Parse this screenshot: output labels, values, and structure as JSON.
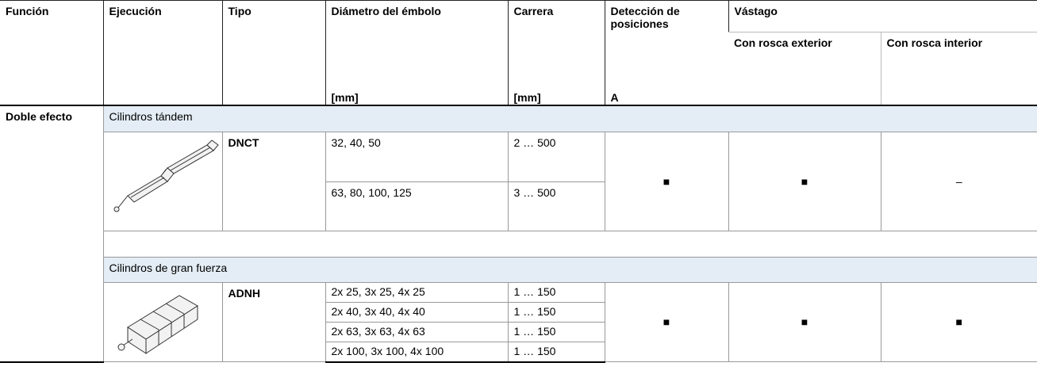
{
  "header": {
    "columns": [
      "Función",
      "Ejecución",
      "Tipo",
      "Diámetro del émbolo",
      "Carrera",
      "Detección de posiciones",
      "Vástago"
    ],
    "subcolumns": [
      "Con rosca exterior",
      "Con rosca interior"
    ],
    "units": [
      "[mm]",
      "[mm]",
      "A"
    ]
  },
  "function": "Doble efecto",
  "groups": [
    {
      "label": "Cilindros tándem",
      "type": "DNCT",
      "rows": [
        [
          "32, 40, 50",
          "2 … 500"
        ],
        [
          "63, 80, 100, 125",
          "3 … 500"
        ]
      ],
      "detection": "■",
      "external": "■",
      "internal": "–"
    },
    {
      "label": "Cilindros de gran fuerza",
      "type": "ADNH",
      "rows": [
        [
          "2x 25, 3x 25, 4x 25",
          "1 … 150"
        ],
        [
          "2x 40, 3x 40, 4x 40",
          "1 … 150"
        ],
        [
          "2x 63, 3x 63, 4x 63",
          "1 … 150"
        ],
        [
          "2x 100, 3x 100, 4x 100",
          "1 … 150"
        ]
      ],
      "detection": "■",
      "external": "■",
      "internal": "■"
    }
  ]
}
